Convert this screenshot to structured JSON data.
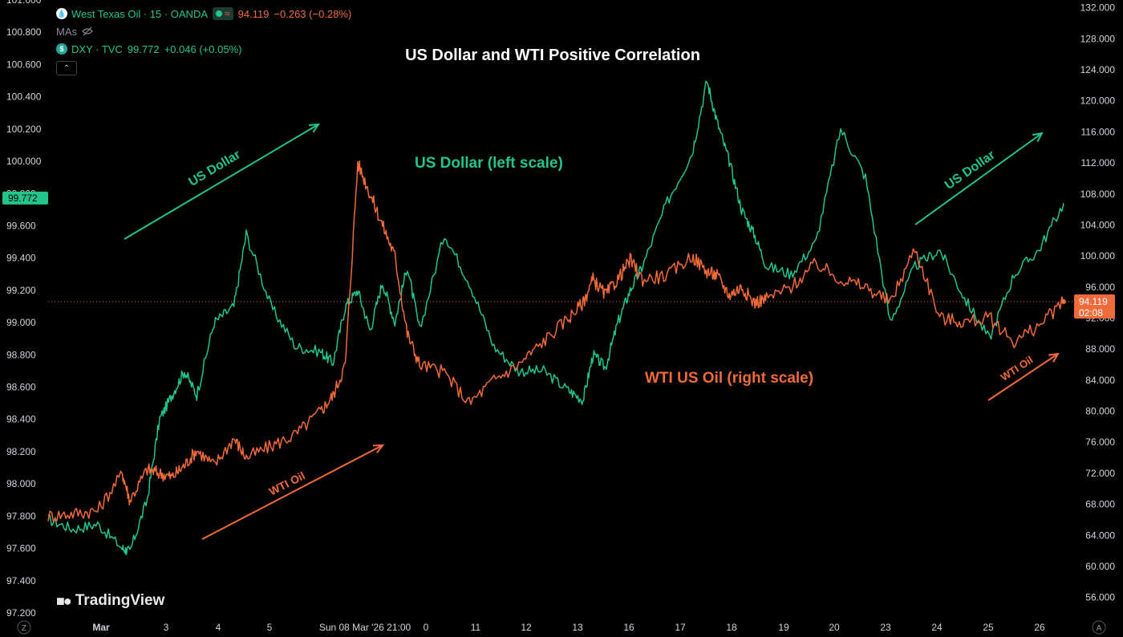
{
  "legend": {
    "wti_symbol": "West Texas Oil · 15 · OANDA",
    "wti_price": "94.119",
    "wti_change": "−0.263 (−0.28%)",
    "mas_label": "MAs",
    "dxy_symbol": "DXY · TVC",
    "dxy_price": "99.772",
    "dxy_change": "+0.046 (+0.05%)"
  },
  "brand": {
    "name": "TradingView"
  },
  "colors": {
    "usd": "#22c58b",
    "wti": "#f06a3a",
    "background": "#000000"
  },
  "chart_data": {
    "type": "line",
    "title": "US Dollar and WTI Positive Correlation",
    "x_tick_labels": [
      "Mar",
      "3",
      "4",
      "5",
      "Sun 08 Mar '26   21:00",
      "0",
      "11",
      "12",
      "13",
      "16",
      "17",
      "18",
      "19",
      "20",
      "23",
      "24",
      "25",
      "26"
    ],
    "left_axis": {
      "ylim": [
        97.2,
        101.0
      ],
      "tick_labels": [
        "101.000",
        "100.800",
        "100.600",
        "100.400",
        "100.200",
        "100.000",
        "99.800",
        "99.600",
        "99.400",
        "99.200",
        "99.000",
        "98.800",
        "98.600",
        "98.400",
        "98.200",
        "98.000",
        "97.800",
        "97.600",
        "97.400",
        "97.200"
      ],
      "last_value_label": "99.772"
    },
    "right_axis": {
      "ylim": [
        54.0,
        133.0
      ],
      "tick_labels": [
        "132.000",
        "128.000",
        "124.000",
        "120.000",
        "116.000",
        "112.000",
        "108.000",
        "104.000",
        "100.000",
        "96.000",
        "92.000",
        "88.000",
        "84.000",
        "80.000",
        "76.000",
        "72.000",
        "68.000",
        "64.000",
        "60.000",
        "56.000"
      ],
      "last_value_label": "94.119",
      "countdown_label": "02:08",
      "current_price_line": 94.119
    },
    "axis_corner_left": "Z",
    "axis_corner_right": "A",
    "series": [
      {
        "name": "DXY",
        "axis": "left",
        "color": "#22c58b",
        "x": [
          0,
          1,
          2,
          3,
          3.3,
          4,
          4.5,
          5,
          5.5,
          6,
          6.7,
          7.5,
          8,
          9,
          10,
          11,
          11.5,
          12,
          12.5,
          13,
          13.5,
          14,
          14.5,
          15,
          16,
          17,
          18,
          19,
          20,
          21,
          21.6,
          22,
          22.5,
          23,
          23.5,
          24,
          25,
          26,
          26.6,
          27,
          27.5,
          28,
          28.5,
          29,
          30,
          31,
          32,
          33,
          34,
          35,
          36,
          37,
          38,
          39,
          40,
          41
        ],
        "values": [
          97.78,
          97.72,
          97.75,
          97.6,
          97.58,
          97.9,
          98.4,
          98.55,
          98.7,
          98.55,
          99.0,
          99.1,
          99.55,
          99.1,
          98.85,
          98.82,
          98.75,
          99.1,
          99.2,
          98.95,
          99.25,
          99.0,
          99.35,
          98.95,
          99.55,
          99.25,
          98.85,
          98.7,
          98.7,
          98.58,
          98.52,
          98.8,
          98.72,
          99.0,
          99.2,
          99.35,
          99.75,
          100.05,
          100.5,
          100.25,
          100.0,
          99.7,
          99.55,
          99.35,
          99.3,
          99.5,
          100.2,
          99.9,
          99.0,
          99.35,
          99.45,
          99.15,
          98.9,
          99.3,
          99.45,
          99.74
        ],
        "last_value": 99.772
      },
      {
        "name": "West Texas Oil",
        "axis": "right",
        "color": "#f06a3a",
        "x": [
          0,
          1,
          2,
          3,
          3.3,
          4,
          4.5,
          5,
          5.5,
          6,
          6.7,
          7.5,
          8,
          9,
          10,
          11,
          11.5,
          12,
          12.5,
          13,
          13.5,
          14,
          14.5,
          15,
          16,
          17,
          18,
          19,
          20,
          21,
          21.6,
          22,
          22.5,
          23,
          23.5,
          24,
          25,
          26,
          26.6,
          27,
          27.5,
          28,
          28.5,
          29,
          30,
          31,
          32,
          33,
          34,
          35,
          36,
          37,
          38,
          39,
          40,
          41
        ],
        "values": [
          66.5,
          66.8,
          67.2,
          72,
          68.5,
          72.5,
          72,
          71.5,
          73,
          75,
          73,
          76.5,
          74,
          75.5,
          77,
          80,
          82,
          86,
          112,
          108,
          104,
          100,
          90,
          86,
          85,
          81,
          84,
          86,
          89,
          92,
          94,
          97,
          95,
          97,
          99.5,
          97,
          97.5,
          100,
          98,
          97.5,
          95,
          96,
          94,
          94.5,
          96,
          99,
          97,
          96,
          94,
          101,
          92,
          91.5,
          92,
          89,
          91,
          94.12
        ],
        "last_value": 94.119
      }
    ],
    "annotations": [
      {
        "text": "US Dollar (left scale)",
        "series": "DXY"
      },
      {
        "text": "WTI US Oil (right scale)",
        "series": "West Texas Oil"
      },
      {
        "text": "US Dollar",
        "type": "trend-arrow",
        "series": "DXY"
      },
      {
        "text": "WTI Oil",
        "type": "trend-arrow",
        "series": "West Texas Oil"
      },
      {
        "text": "US Dollar",
        "type": "trend-arrow",
        "series": "DXY"
      },
      {
        "text": "WTI Oil",
        "type": "trend-arrow",
        "series": "West Texas Oil"
      }
    ]
  }
}
